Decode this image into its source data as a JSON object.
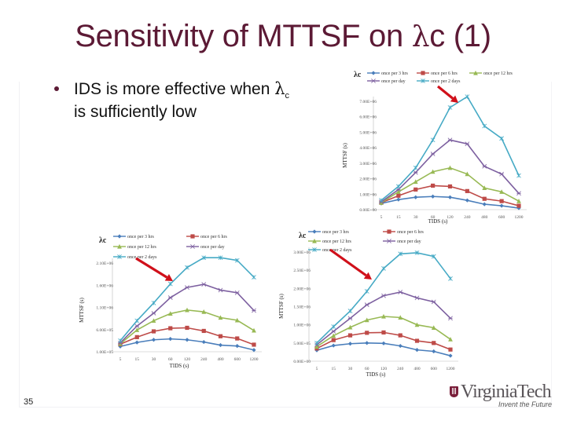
{
  "slide": {
    "title_prefix": "Sensitivity of MTTSF on ",
    "title_lambda": "λ",
    "title_suffix": "c (1)",
    "bullet_text": "IDS is more effective when ",
    "bullet_lambda": "λ",
    "bullet_sub": "c",
    "bullet_text2": " is sufficiently low",
    "page_number": "35",
    "logo_name": "VirginiaTech",
    "logo_tagline": "Invent the Future",
    "colors": {
      "title": "#5c1a35",
      "arrow": "#d0101a"
    }
  },
  "chart_data": [
    {
      "id": "top-right",
      "type": "line",
      "lambda_label": "λc",
      "xlabel": "TIDS (s)",
      "ylabel": "MTTSF (s)",
      "categories": [
        "5",
        "15",
        "30",
        "60",
        "120",
        "240",
        "480",
        "600",
        "1200"
      ],
      "yticks": [
        "0.00E+00",
        "1.00E+06",
        "2.00E+06",
        "3.00E+06",
        "4.00E+06",
        "5.00E+06",
        "6.00E+06",
        "7.00E+06"
      ],
      "ylim": [
        0,
        7000000
      ],
      "legend_position": "top",
      "series": [
        {
          "name": "once per 3 hrs",
          "color": "#4a7ebb",
          "marker": "diamond",
          "values": [
            400000,
            650000,
            800000,
            850000,
            800000,
            600000,
            350000,
            250000,
            100000
          ]
        },
        {
          "name": "once per 6 hrs",
          "color": "#be4b48",
          "marker": "square",
          "values": [
            450000,
            900000,
            1300000,
            1550000,
            1500000,
            1200000,
            700000,
            550000,
            250000
          ]
        },
        {
          "name": "once per 12 hrs",
          "color": "#98b954",
          "marker": "triangle",
          "values": [
            450000,
            1150000,
            1800000,
            2450000,
            2700000,
            2300000,
            1400000,
            1150000,
            550000
          ]
        },
        {
          "name": "once per day",
          "color": "#7d60a0",
          "marker": "x",
          "values": [
            500000,
            1300000,
            2400000,
            3600000,
            4500000,
            4250000,
            2800000,
            2300000,
            1050000
          ]
        },
        {
          "name": "once per 2 days",
          "color": "#46aac5",
          "marker": "star",
          "values": [
            600000,
            1500000,
            2700000,
            4500000,
            6600000,
            7300000,
            5400000,
            4600000,
            2200000
          ]
        }
      ]
    },
    {
      "id": "bottom-left",
      "type": "line",
      "lambda_label": "λc",
      "xlabel": "TIDS (s)",
      "ylabel": "MTTSF (s)",
      "categories": [
        "5",
        "15",
        "30",
        "60",
        "120",
        "240",
        "480",
        "600",
        "1200"
      ],
      "yticks": [
        "1.00E+05",
        "6.00E+05",
        "1.10E+06",
        "1.60E+06",
        "2.10E+06"
      ],
      "ylim": [
        100000,
        2100000
      ],
      "legend_position": "top",
      "series": [
        {
          "name": "once per 3 hrs",
          "color": "#4a7ebb",
          "marker": "diamond",
          "values": [
            220000,
            310000,
            370000,
            390000,
            370000,
            320000,
            250000,
            230000,
            140000
          ]
        },
        {
          "name": "once per 6 hrs",
          "color": "#be4b48",
          "marker": "square",
          "values": [
            270000,
            430000,
            560000,
            630000,
            640000,
            570000,
            450000,
            400000,
            260000
          ]
        },
        {
          "name": "once per 12 hrs",
          "color": "#98b954",
          "marker": "triangle",
          "values": [
            280000,
            590000,
            800000,
            960000,
            1040000,
            1000000,
            870000,
            810000,
            580000
          ]
        },
        {
          "name": "once per day",
          "color": "#7d60a0",
          "marker": "x",
          "values": [
            300000,
            680000,
            970000,
            1320000,
            1550000,
            1620000,
            1490000,
            1430000,
            1030000
          ]
        },
        {
          "name": "once per 2 days",
          "color": "#46aac5",
          "marker": "star",
          "values": [
            350000,
            800000,
            1200000,
            1630000,
            2000000,
            2220000,
            2220000,
            2160000,
            1780000
          ]
        }
      ]
    },
    {
      "id": "bottom-right",
      "type": "line",
      "lambda_label": "λc",
      "xlabel": "TIDS (s)",
      "ylabel": "MTTSF (s)",
      "categories": [
        "5",
        "15",
        "30",
        "60",
        "120",
        "240",
        "480",
        "600",
        "1200"
      ],
      "yticks": [
        "0.00E+00",
        "5.00E+05",
        "1.00E+06",
        "1.50E+06",
        "2.00E+06",
        "2.50E+06",
        "3.00E+06"
      ],
      "ylim": [
        0,
        3000000
      ],
      "legend_position": "top",
      "series": [
        {
          "name": "once per 3 hrs",
          "color": "#4a7ebb",
          "marker": "diamond",
          "values": [
            300000,
            430000,
            480000,
            500000,
            490000,
            420000,
            310000,
            270000,
            150000
          ]
        },
        {
          "name": "once per 6 hrs",
          "color": "#be4b48",
          "marker": "square",
          "values": [
            350000,
            580000,
            710000,
            780000,
            790000,
            710000,
            560000,
            500000,
            320000
          ]
        },
        {
          "name": "once per 12 hrs",
          "color": "#98b954",
          "marker": "triangle",
          "values": [
            400000,
            700000,
            930000,
            1130000,
            1230000,
            1200000,
            1000000,
            920000,
            600000
          ]
        },
        {
          "name": "once per day",
          "color": "#7d60a0",
          "marker": "x",
          "values": [
            450000,
            820000,
            1180000,
            1550000,
            1800000,
            1900000,
            1740000,
            1630000,
            1180000
          ]
        },
        {
          "name": "once per 2 days",
          "color": "#46aac5",
          "marker": "star",
          "values": [
            500000,
            950000,
            1380000,
            1920000,
            2550000,
            2950000,
            2980000,
            2880000,
            2270000
          ]
        }
      ]
    }
  ]
}
